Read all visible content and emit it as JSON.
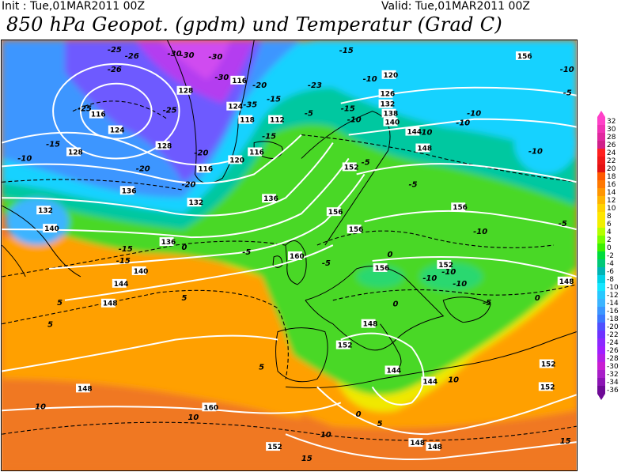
{
  "header": {
    "init": "Init : Tue,01MAR2011  00Z",
    "valid": "Valid: Tue,01MAR2011  00Z",
    "title": "850 hPa Geopot. (gpdm) und Temperatur (Grad C)"
  },
  "legend": {
    "values": [
      "32",
      "30",
      "28",
      "26",
      "24",
      "22",
      "20",
      "18",
      "16",
      "14",
      "12",
      "10",
      "8",
      "6",
      "4",
      "2",
      "0",
      "-2",
      "-4",
      "-6",
      "-8",
      "-10",
      "-12",
      "-14",
      "-16",
      "-18",
      "-20",
      "-22",
      "-24",
      "-26",
      "-28",
      "-30",
      "-32",
      "-34",
      "-36"
    ],
    "colors": [
      "#ff40c8",
      "#f032b4",
      "#e0289f",
      "#d0208a",
      "#ff2020",
      "#f01818",
      "#e31212",
      "#ff5a00",
      "#ff7800",
      "#ff9600",
      "#ffb400",
      "#ffd200",
      "#ffe600",
      "#f0f000",
      "#b4ff00",
      "#78ff00",
      "#3cf000",
      "#00dc3c",
      "#00c878",
      "#00b4b4",
      "#00d2e6",
      "#14e6ff",
      "#28c8ff",
      "#3cb4ff",
      "#3c96ff",
      "#3c78ff",
      "#5050ff",
      "#6e32ff",
      "#8c28ff",
      "#a01eff",
      "#b41ee6",
      "#c81ed2",
      "#a81ec8",
      "#8c14b4",
      "#6e0a96"
    ]
  },
  "map": {
    "geopotential_labels": [
      "116",
      "112",
      "118",
      "120",
      "124",
      "126",
      "128",
      "132",
      "136",
      "138",
      "140",
      "144",
      "148",
      "152",
      "156",
      "160"
    ],
    "temperature_labels": [
      "-35",
      "-30",
      "-26",
      "-25",
      "-23",
      "-20",
      "-15",
      "-10",
      "-5",
      "0",
      "5",
      "10",
      "15"
    ],
    "colors": {
      "magenta_core": "#c83cf0",
      "purple": "#7848ff",
      "blue": "#3c96ff",
      "cyan": "#14d2ff",
      "teal": "#00c8a0",
      "green": "#3cdc28",
      "yellow": "#f0f000",
      "orange": "#ff9600",
      "dark_orange": "#f07820"
    }
  }
}
